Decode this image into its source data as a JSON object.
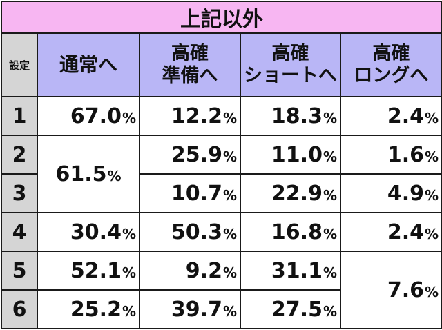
{
  "title": "上記以外",
  "headers": {
    "setting": "設定",
    "col1": [
      "通常へ"
    ],
    "col2": [
      "高確",
      "準備へ"
    ],
    "col3": [
      "高確",
      "ショートへ"
    ],
    "col4": [
      "高確",
      "ロングへ"
    ]
  },
  "percent_sign": "%",
  "rows": [
    {
      "setting": "1",
      "normal": "67.0",
      "prep": "12.2",
      "short": "18.3",
      "long": "2.4"
    },
    {
      "setting": "2",
      "normal": "61.5",
      "prep": "25.9",
      "short": "11.0",
      "long": "1.6"
    },
    {
      "setting": "3",
      "prep": "10.7",
      "short": "22.9",
      "long": "4.9"
    },
    {
      "setting": "4",
      "normal": "30.4",
      "prep": "50.3",
      "short": "16.8",
      "long": "2.4"
    },
    {
      "setting": "5",
      "normal": "52.1",
      "prep": "9.2",
      "short": "31.1",
      "long": "7.6"
    },
    {
      "setting": "6",
      "normal": "25.2",
      "prep": "39.7",
      "short": "27.5"
    }
  ]
}
